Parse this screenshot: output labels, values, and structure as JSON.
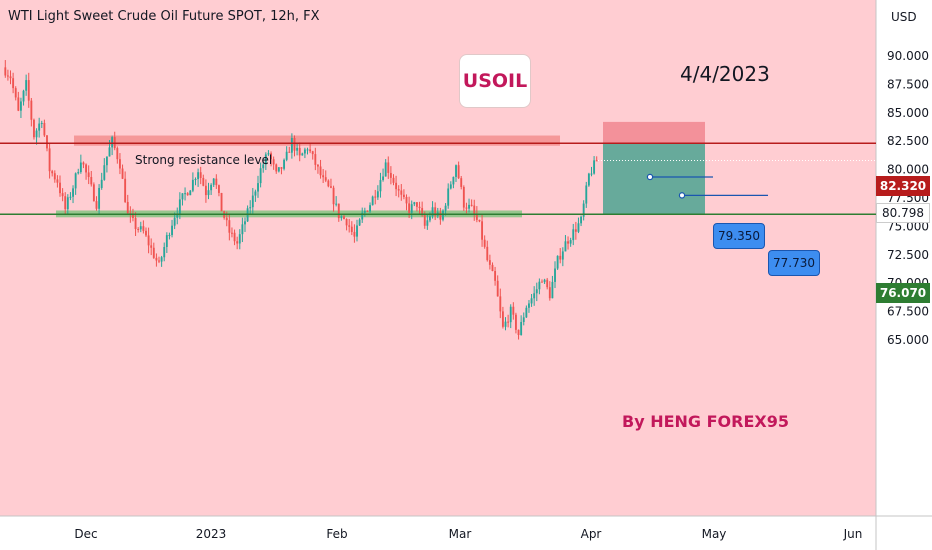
{
  "header": {
    "symbol_title": "WTI Light Sweet Crude Oil Future SPOT, 12h, FX",
    "currency": "USD"
  },
  "annotations": {
    "symbol_box": "USOIL",
    "date": "4/4/2023",
    "author": "By HENG FOREX95",
    "resistance_text": "Strong resistance level"
  },
  "targets": [
    {
      "label": "79.350",
      "value": 79.35
    },
    {
      "label": "77.730",
      "value": 77.73
    }
  ],
  "price_tags": {
    "resistance": "82.320",
    "current": "80.798",
    "support": "76.070"
  },
  "colors": {
    "background": "#ffcdd2",
    "up_candle": "#26a69a",
    "down_candle": "#ef5350",
    "resistance_line": "#b71c1c",
    "support_line": "#2e7d32",
    "target_box": "#3d8df0",
    "author_text": "#c2185b"
  },
  "chart_data": {
    "type": "candlestick",
    "title": "WTI Light Sweet Crude Oil Future SPOT, 12h, FX",
    "ylabel": "USD",
    "ylim": [
      62.0,
      92.5
    ],
    "x_ticks": [
      "Dec",
      "2023",
      "Feb",
      "Mar",
      "Apr",
      "May",
      "Jun"
    ],
    "y_ticks": [
      {
        "value": 90.0,
        "label": "90.000"
      },
      {
        "value": 87.5,
        "label": "87.500"
      },
      {
        "value": 85.0,
        "label": "85.000"
      },
      {
        "value": 82.5,
        "label": "82.500"
      },
      {
        "value": 80.0,
        "label": "80.000"
      },
      {
        "value": 77.5,
        "label": "77.500"
      },
      {
        "value": 75.0,
        "label": "75.000"
      },
      {
        "value": 72.5,
        "label": "72.500"
      },
      {
        "value": 70.0,
        "label": "70.000"
      },
      {
        "value": 67.5,
        "label": "67.500"
      },
      {
        "value": 65.0,
        "label": "65.000"
      }
    ],
    "levels": {
      "resistance": 82.32,
      "support": 76.07,
      "current": 80.798
    },
    "resistance_zone": [
      82.1,
      83.0
    ],
    "support_zone": [
      75.8,
      76.4
    ],
    "stop_zone": [
      82.32,
      84.2
    ],
    "target_zone": [
      76.07,
      82.32
    ],
    "path": [
      89.0,
      88.2,
      85.0,
      87.5,
      83.0,
      84.5,
      80.0,
      79.0,
      76.5,
      78.5,
      81.0,
      79.0,
      77.0,
      80.5,
      82.5,
      80.5,
      76.0,
      75.0,
      74.5,
      73.0,
      71.5,
      74.0,
      76.0,
      77.5,
      78.5,
      80.0,
      78.0,
      79.5,
      76.5,
      74.5,
      73.5,
      75.5,
      77.5,
      80.0,
      81.5,
      79.5,
      80.5,
      82.5,
      81.0,
      82.0,
      80.5,
      79.0,
      78.0,
      76.0,
      75.5,
      74.0,
      76.0,
      77.0,
      78.5,
      80.5,
      79.0,
      77.5,
      76.5,
      77.0,
      75.0,
      76.5,
      75.5,
      78.0,
      80.5,
      77.0,
      76.5,
      75.0,
      72.0,
      70.0,
      66.0,
      67.5,
      65.5,
      68.0,
      69.0,
      70.5,
      69.0,
      72.0,
      73.5,
      74.5,
      75.5,
      79.5,
      80.8
    ]
  }
}
